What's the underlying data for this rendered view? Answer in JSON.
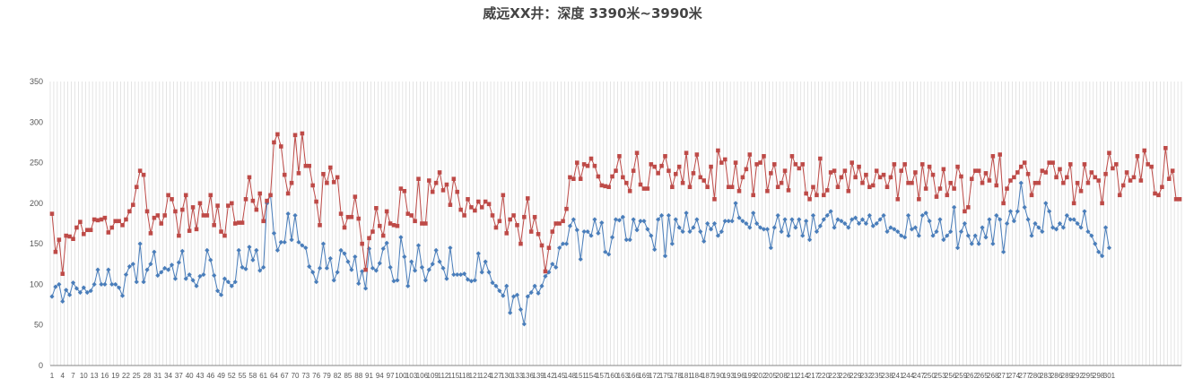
{
  "chart_data": {
    "type": "line",
    "title": "威远XX井：深度 3390米~3990米",
    "xlabel": "",
    "ylabel": "",
    "ylim": [
      0,
      350
    ],
    "yticks": [
      0,
      50,
      100,
      150,
      200,
      250,
      300,
      350
    ],
    "x_tick_labels": [
      "1",
      "4",
      "7",
      "10",
      "13",
      "16",
      "19",
      "22",
      "25",
      "28",
      "31",
      "34",
      "37",
      "40",
      "43",
      "46",
      "49",
      "52",
      "55",
      "58",
      "61",
      "64",
      "67",
      "70",
      "73",
      "76",
      "79",
      "82",
      "85",
      "88",
      "91",
      "94",
      "97",
      "100",
      "103",
      "106",
      "109",
      "112",
      "115",
      "118",
      "121",
      "124",
      "127",
      "130",
      "133",
      "136",
      "139",
      "142",
      "145",
      "148",
      "151",
      "154",
      "157",
      "160",
      "163",
      "166",
      "169",
      "172",
      "175",
      "178",
      "181",
      "184",
      "187",
      "190",
      "193",
      "196",
      "199",
      "202",
      "205",
      "208",
      "211",
      "214",
      "217",
      "220",
      "223",
      "226",
      "229",
      "232",
      "235",
      "238",
      "241",
      "244",
      "247",
      "250",
      "253",
      "256",
      "259",
      "262",
      "265",
      "268",
      "271",
      "274",
      "277",
      "280",
      "283",
      "286",
      "289",
      "292",
      "295",
      "298",
      "301"
    ],
    "grid": "vertical",
    "legend": "none",
    "colors": {
      "blue": "#4A7EBB",
      "red": "#BE4B48",
      "grid": "#D9D9D9",
      "axis": "#868686"
    },
    "series": [
      {
        "color": "#4A7EBB",
        "values": [
          85,
          97,
          100,
          79,
          93,
          87,
          102,
          95,
          90,
          96,
          90,
          92,
          100,
          118,
          100,
          100,
          118,
          100,
          100,
          96,
          86,
          112,
          122,
          125,
          103,
          150,
          103,
          118,
          125,
          140,
          111,
          115,
          120,
          118,
          124,
          107,
          127,
          141,
          107,
          112,
          105,
          98,
          110,
          112,
          142,
          130,
          111,
          92,
          87,
          107,
          103,
          98,
          103,
          142,
          121,
          119,
          146,
          130,
          142,
          117,
          121,
          200,
          210,
          163,
          142,
          152,
          152,
          187,
          155,
          185,
          152,
          148,
          145,
          122,
          115,
          103,
          120,
          150,
          120,
          132,
          105,
          115,
          142,
          138,
          128,
          118,
          134,
          101,
          116,
          95,
          144,
          120,
          117,
          126,
          144,
          151,
          121,
          104,
          105,
          158,
          134,
          98,
          128,
          117,
          148,
          121,
          105,
          118,
          125,
          142,
          128,
          120,
          107,
          145,
          112,
          112,
          112,
          113,
          106,
          104,
          105,
          138,
          115,
          128,
          115,
          102,
          98,
          92,
          86,
          98,
          65,
          85,
          87,
          69,
          51,
          85,
          90,
          98,
          89,
          98,
          110,
          115,
          125,
          121,
          145,
          150,
          150,
          172,
          180,
          167,
          131,
          165,
          165,
          160,
          180,
          163,
          176,
          140,
          137,
          158,
          180,
          179,
          183,
          155,
          155,
          180,
          167,
          178,
          178,
          168,
          160,
          143,
          180,
          185,
          135,
          185,
          150,
          180,
          170,
          165,
          188,
          165,
          170,
          180,
          165,
          153,
          175,
          168,
          175,
          160,
          165,
          178,
          178,
          178,
          200,
          182,
          178,
          175,
          170,
          188,
          175,
          170,
          168,
          168,
          145,
          170,
          185,
          165,
          180,
          160,
          180,
          170,
          180,
          160,
          178,
          155,
          185,
          165,
          172,
          180,
          185,
          190,
          170,
          180,
          178,
          175,
          170,
          180,
          182,
          175,
          180,
          175,
          185,
          172,
          175,
          180,
          185,
          165,
          170,
          168,
          165,
          160,
          158,
          185,
          168,
          170,
          160,
          185,
          188,
          178,
          160,
          165,
          180,
          155,
          160,
          165,
          195,
          145,
          165,
          175,
          160,
          150,
          160,
          150,
          170,
          158,
          180,
          150,
          185,
          180,
          140,
          175,
          190,
          178,
          190,
          225,
          195,
          180,
          160,
          175,
          170,
          165,
          200,
          190,
          170,
          168,
          175,
          170,
          185,
          180,
          180,
          175,
          170,
          190,
          165,
          160,
          150,
          140,
          135,
          170,
          145
        ]
      },
      {
        "color": "#BE4B48",
        "values": [
          187,
          140,
          155,
          113,
          160,
          159,
          156,
          170,
          177,
          162,
          167,
          167,
          180,
          179,
          180,
          182,
          164,
          170,
          178,
          178,
          173,
          180,
          190,
          198,
          220,
          240,
          235,
          190,
          163,
          182,
          185,
          175,
          185,
          210,
          205,
          190,
          160,
          192,
          210,
          166,
          195,
          168,
          200,
          185,
          185,
          210,
          173,
          197,
          165,
          160,
          197,
          200,
          175,
          176,
          176,
          205,
          232,
          203,
          192,
          212,
          178,
          203,
          210,
          275,
          285,
          270,
          235,
          212,
          225,
          284,
          237,
          286,
          246,
          246,
          222,
          202,
          173,
          236,
          225,
          244,
          226,
          232,
          187,
          170,
          183,
          183,
          208,
          181,
          150,
          118,
          157,
          165,
          194,
          172,
          160,
          190,
          175,
          173,
          172,
          218,
          215,
          187,
          185,
          178,
          230,
          175,
          175,
          228,
          214,
          225,
          238,
          216,
          223,
          198,
          230,
          214,
          192,
          185,
          205,
          195,
          191,
          202,
          195,
          202,
          199,
          185,
          170,
          178,
          210,
          163,
          180,
          185,
          173,
          150,
          183,
          206,
          165,
          183,
          162,
          148,
          116,
          145,
          165,
          175,
          175,
          178,
          193,
          232,
          230,
          250,
          230,
          248,
          246,
          255,
          246,
          233,
          222,
          221,
          220,
          233,
          240,
          258,
          232,
          225,
          215,
          240,
          262,
          223,
          218,
          218,
          248,
          245,
          237,
          246,
          258,
          240,
          220,
          236,
          245,
          225,
          262,
          220,
          237,
          260,
          232,
          228,
          220,
          245,
          205,
          265,
          250,
          254,
          220,
          220,
          250,
          215,
          232,
          242,
          260,
          210,
          248,
          250,
          258,
          215,
          237,
          248,
          220,
          225,
          240,
          216,
          258,
          248,
          243,
          248,
          212,
          205,
          220,
          210,
          255,
          210,
          216,
          238,
          240,
          220,
          232,
          240,
          215,
          250,
          232,
          245,
          225,
          235,
          220,
          222,
          240,
          232,
          235,
          220,
          232,
          248,
          205,
          240,
          248,
          225,
          225,
          238,
          205,
          248,
          218,
          245,
          235,
          208,
          218,
          242,
          210,
          225,
          218,
          245,
          233,
          190,
          195,
          230,
          240,
          240,
          225,
          237,
          228,
          258,
          222,
          260,
          200,
          218,
          228,
          232,
          238,
          245,
          250,
          236,
          210,
          225,
          225,
          240,
          238,
          250,
          250,
          232,
          242,
          225,
          232,
          248,
          200,
          225,
          215,
          248,
          225,
          238,
          232,
          228,
          200,
          236,
          262,
          243,
          248,
          210,
          222,
          238,
          228,
          232,
          258,
          228,
          265,
          248,
          245,
          212,
          210,
          220,
          268,
          230,
          240,
          205,
          205
        ]
      }
    ]
  }
}
